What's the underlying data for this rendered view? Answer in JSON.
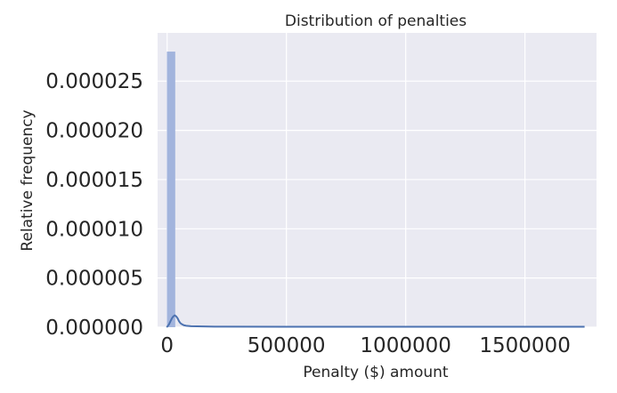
{
  "chart_data": {
    "type": "bar",
    "title": "Distribution of penalties",
    "xlabel": "Penalty ($) amount",
    "ylabel": "Relative frequency",
    "xlim": [
      -40000,
      1800000
    ],
    "ylim": [
      0,
      2.99e-05
    ],
    "xticks": [
      0,
      500000,
      1000000,
      1500000
    ],
    "xtick_labels": [
      "0",
      "500000",
      "1000000",
      "1500000"
    ],
    "yticks": [
      0,
      5e-06,
      1e-05,
      1.5e-05,
      2e-05,
      2.5e-05
    ],
    "ytick_labels": [
      "0.000000",
      "0.000005",
      "0.000010",
      "0.000015",
      "0.000020",
      "0.000025"
    ],
    "grid": true,
    "histogram": {
      "bins": [
        {
          "x0": -1000,
          "x1": 34000,
          "density": 2.8e-05
        }
      ]
    },
    "kde": {
      "x": [
        -2000,
        2000,
        8000,
        14000,
        20000,
        26000,
        32000,
        38000,
        44000,
        50000,
        56000,
        62000,
        70000,
        80000,
        100000,
        200000,
        500000,
        1000000,
        1500000,
        1750000
      ],
      "y": [
        0,
        1e-07,
        3e-07,
        6e-07,
        9e-07,
        1.1e-06,
        1.2e-06,
        1.1e-06,
        9e-07,
        6e-07,
        4e-07,
        3e-07,
        2e-07,
        1.5e-07,
        1e-07,
        6e-08,
        5e-08,
        4e-08,
        4e-08,
        4e-08
      ]
    },
    "colors": {
      "background": "#eaeaf2",
      "grid": "#ffffff",
      "bar": "#a2b4dd",
      "line": "#4c72b0"
    }
  }
}
